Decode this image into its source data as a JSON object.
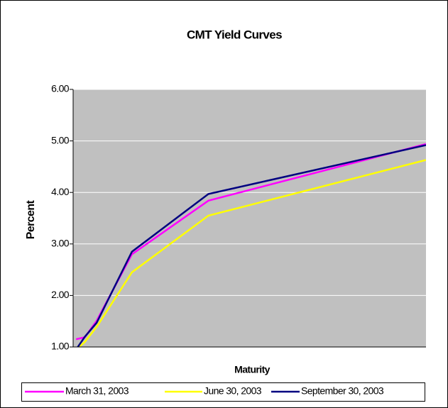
{
  "chart_data": {
    "type": "line",
    "title": "CMT Yield Curves",
    "xlabel": "Maturity",
    "ylabel": "Percent",
    "x": [
      0.25,
      1,
      2,
      5,
      11.5,
      30
    ],
    "xlim": [
      0,
      30
    ],
    "ylim": [
      1,
      6
    ],
    "yticks": [
      {
        "value": 1,
        "label": "1.00"
      },
      {
        "value": 2,
        "label": "2.00"
      },
      {
        "value": 3,
        "label": "3.00"
      },
      {
        "value": 4,
        "label": "4.00"
      },
      {
        "value": 5,
        "label": "5.00"
      },
      {
        "value": 6,
        "label": "6.00"
      }
    ],
    "grid": true,
    "legend": "bottom",
    "series": [
      {
        "name": "March 31, 2003",
        "color": "#ff00ff",
        "values": [
          1.15,
          1.19,
          1.51,
          2.8,
          3.84,
          4.94
        ]
      },
      {
        "name": "June 30, 2003",
        "color": "#ffff00",
        "values": [
          0.95,
          1.1,
          1.39,
          2.45,
          3.55,
          4.63
        ]
      },
      {
        "name": "September 30, 2003",
        "color": "#000080",
        "values": [
          0.95,
          1.2,
          1.47,
          2.85,
          3.97,
          4.92
        ]
      }
    ]
  }
}
